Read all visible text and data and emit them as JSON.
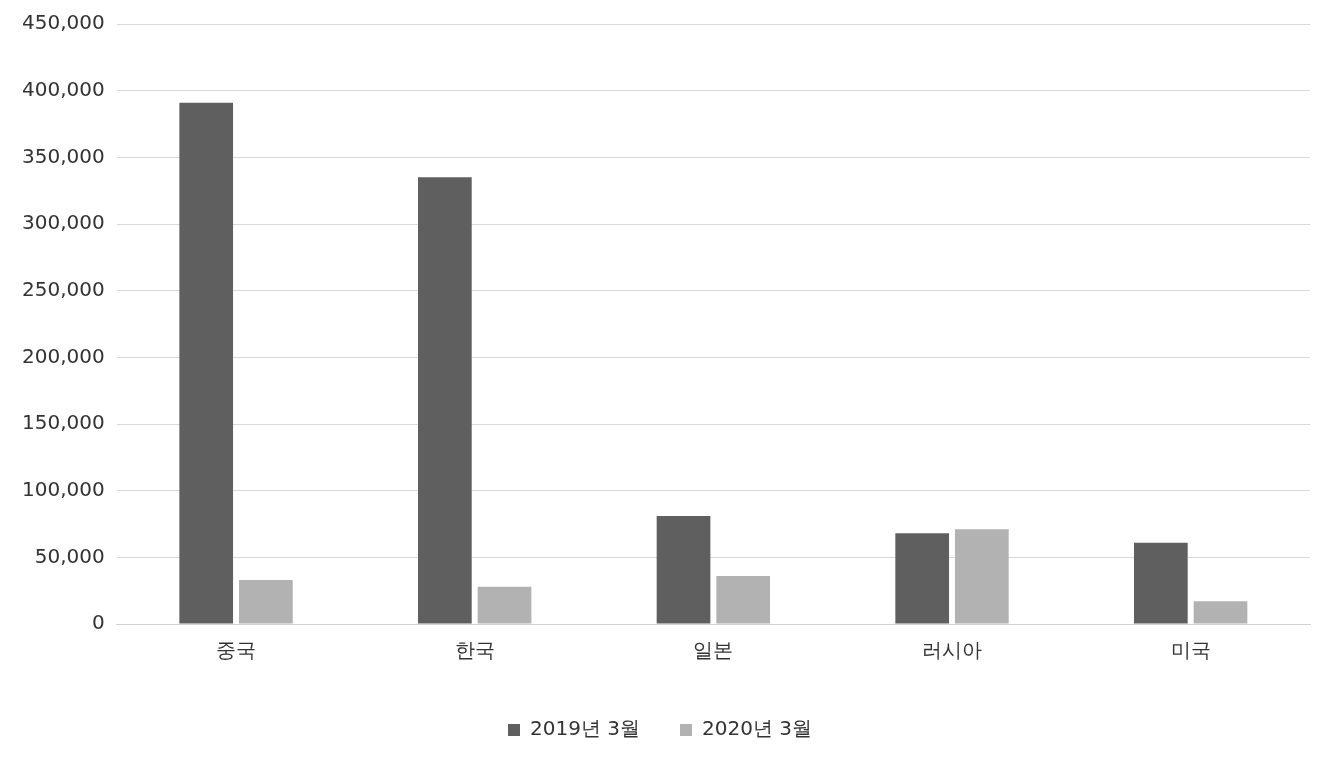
{
  "chart_data": {
    "type": "bar",
    "categories": [
      "중국",
      "한국",
      "일본",
      "러시아",
      "미국"
    ],
    "series": [
      {
        "name": "2019년 3월",
        "color": "#5f5f5f",
        "values": [
          391000,
          335000,
          81000,
          68000,
          61000
        ]
      },
      {
        "name": "2020년 3월",
        "color": "#b2b2b2",
        "values": [
          33000,
          28000,
          36000,
          71000,
          17000
        ]
      }
    ],
    "ylim": [
      0,
      450000
    ],
    "yticks": [
      {
        "value": 0,
        "label": "0"
      },
      {
        "value": 50000,
        "label": "50,000"
      },
      {
        "value": 100000,
        "label": "100,000"
      },
      {
        "value": 150000,
        "label": "150,000"
      },
      {
        "value": 200000,
        "label": "200,000"
      },
      {
        "value": 250000,
        "label": "250,000"
      },
      {
        "value": 300000,
        "label": "300,000"
      },
      {
        "value": 350000,
        "label": "350,000"
      },
      {
        "value": 400000,
        "label": "400,000"
      },
      {
        "value": 450000,
        "label": "450,000"
      }
    ],
    "grid": "y",
    "legend": "bottom"
  }
}
